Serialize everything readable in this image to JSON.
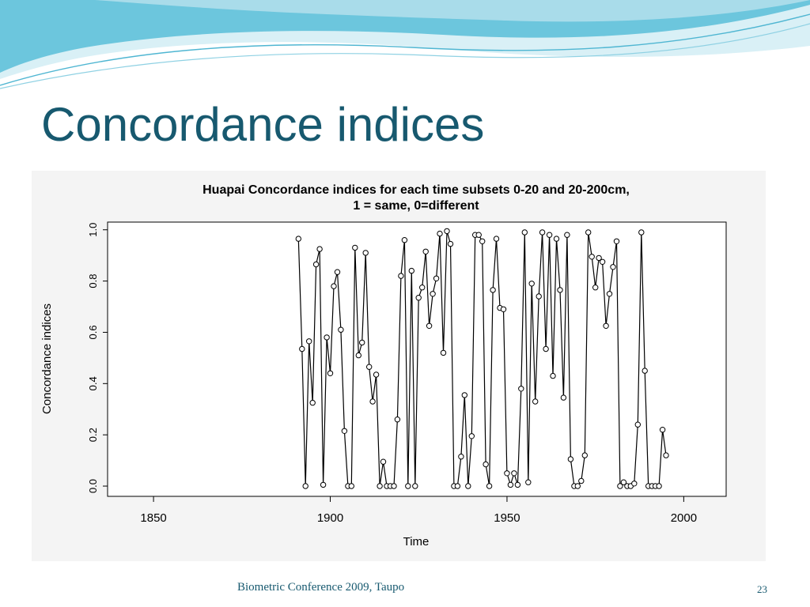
{
  "slide": {
    "title": "Concordance indices",
    "footer": "Biometric Conference 2009, Taupo",
    "page_number": "23"
  },
  "colors": {
    "title": "#17596f",
    "footer": "#17596f",
    "wave_dark": "#5ec3dc",
    "wave_light": "#bfe6f1"
  },
  "chart_data": {
    "type": "line",
    "title": "Huapai Concordance indices for each time subsets 0-20 and 20-200cm,",
    "subtitle": "1 = same, 0=different",
    "xlabel": "Time",
    "ylabel": "Concordance indices",
    "xlim": [
      1837,
      2012
    ],
    "ylim": [
      -0.04,
      1.03
    ],
    "xticks": [
      1850,
      1900,
      1950,
      2000
    ],
    "yticks": [
      0.0,
      0.2,
      0.4,
      0.6,
      0.8,
      1.0
    ],
    "ytick_labels": [
      "0.0",
      "0.2",
      "0.4",
      "0.6",
      "0.8",
      "1.0"
    ],
    "markers": "open-circle",
    "line_color": "#000000",
    "grid": false,
    "series": [
      {
        "x": [
          1891,
          1892,
          1893,
          1894,
          1895,
          1896,
          1897,
          1898,
          1899,
          1900,
          1901,
          1902,
          1903,
          1904,
          1905,
          1906,
          1907,
          1908,
          1909,
          1910,
          1911,
          1912,
          1913,
          1914,
          1915,
          1916,
          1917,
          1918,
          1919,
          1920,
          1921,
          1922,
          1923,
          1924,
          1925,
          1926,
          1927,
          1928,
          1929,
          1930,
          1931,
          1932,
          1933,
          1934,
          1935,
          1936,
          1937,
          1938,
          1939,
          1940,
          1941,
          1942,
          1943,
          1944,
          1945,
          1946,
          1947,
          1948,
          1949,
          1950,
          1951,
          1952,
          1953,
          1954,
          1955,
          1956,
          1957,
          1958,
          1959,
          1960,
          1961,
          1962,
          1963,
          1964,
          1965,
          1966,
          1967,
          1968,
          1969,
          1970,
          1971,
          1972,
          1973,
          1974,
          1975,
          1976,
          1977,
          1978,
          1979,
          1980,
          1981,
          1982,
          1983,
          1984,
          1985,
          1986,
          1987,
          1988,
          1989,
          1990,
          1991,
          1992,
          1993,
          1994,
          1995
        ],
        "y": [
          0.965,
          0.535,
          0.0,
          0.565,
          0.325,
          0.865,
          0.925,
          0.005,
          0.58,
          0.44,
          0.78,
          0.835,
          0.61,
          0.215,
          0.0,
          0.0,
          0.93,
          0.51,
          0.56,
          0.91,
          0.465,
          0.33,
          0.435,
          0.0,
          0.095,
          0.0,
          0.0,
          0.0,
          0.26,
          0.82,
          0.96,
          0.0,
          0.84,
          0.0,
          0.735,
          0.775,
          0.915,
          0.625,
          0.75,
          0.81,
          0.985,
          0.52,
          0.995,
          0.945,
          0.0,
          0.0,
          0.115,
          0.355,
          0.0,
          0.195,
          0.98,
          0.98,
          0.955,
          0.085,
          0.0,
          0.765,
          0.965,
          0.695,
          0.69,
          0.05,
          0.005,
          0.05,
          0.005,
          0.38,
          0.99,
          0.015,
          0.79,
          0.33,
          0.74,
          0.99,
          0.535,
          0.98,
          0.43,
          0.965,
          0.765,
          0.345,
          0.98,
          0.105,
          0.0,
          0.0,
          0.02,
          0.12,
          0.99,
          0.895,
          0.775,
          0.89,
          0.875,
          0.625,
          0.75,
          0.855,
          0.955,
          0.0,
          0.015,
          0.0,
          0.0,
          0.01,
          0.24,
          0.99,
          0.45,
          0.0,
          0.0,
          0.0,
          0.0,
          0.22,
          0.12
        ]
      }
    ]
  }
}
